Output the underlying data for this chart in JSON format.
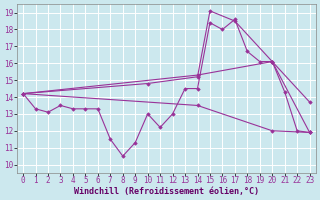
{
  "xlabel": "Windchill (Refroidissement éolien,°C)",
  "bg_color": "#cce8ee",
  "grid_color": "#ffffff",
  "line_color": "#993399",
  "xlim": [
    -0.5,
    23.5
  ],
  "ylim": [
    9.5,
    19.5
  ],
  "xticks": [
    0,
    1,
    2,
    3,
    4,
    5,
    6,
    7,
    8,
    9,
    10,
    11,
    12,
    13,
    14,
    15,
    16,
    17,
    18,
    19,
    20,
    21,
    22,
    23
  ],
  "yticks": [
    10,
    11,
    12,
    13,
    14,
    15,
    16,
    17,
    18,
    19
  ],
  "line1_x": [
    0,
    1,
    2,
    3,
    4,
    5,
    6,
    7,
    8,
    9,
    10,
    11,
    12,
    13,
    14,
    15,
    16,
    17,
    18,
    19,
    20,
    21,
    22,
    23
  ],
  "line1_y": [
    14.2,
    13.3,
    13.1,
    13.5,
    13.3,
    13.3,
    13.3,
    11.5,
    10.5,
    11.3,
    13.0,
    12.2,
    13.0,
    14.5,
    14.5,
    18.4,
    18.0,
    18.6,
    16.7,
    16.1,
    16.1,
    14.3,
    12.0,
    11.9
  ],
  "line2_x": [
    0,
    10,
    14,
    15,
    17,
    20,
    23
  ],
  "line2_y": [
    14.2,
    14.8,
    15.2,
    19.1,
    18.5,
    16.1,
    13.7
  ],
  "line3_x": [
    0,
    14,
    20,
    23
  ],
  "line3_y": [
    14.2,
    15.3,
    16.1,
    11.9
  ],
  "line4_x": [
    0,
    14,
    20,
    23
  ],
  "line4_y": [
    14.2,
    13.5,
    12.0,
    11.9
  ],
  "xlabel_fontsize": 6,
  "tick_fontsize": 5.5
}
